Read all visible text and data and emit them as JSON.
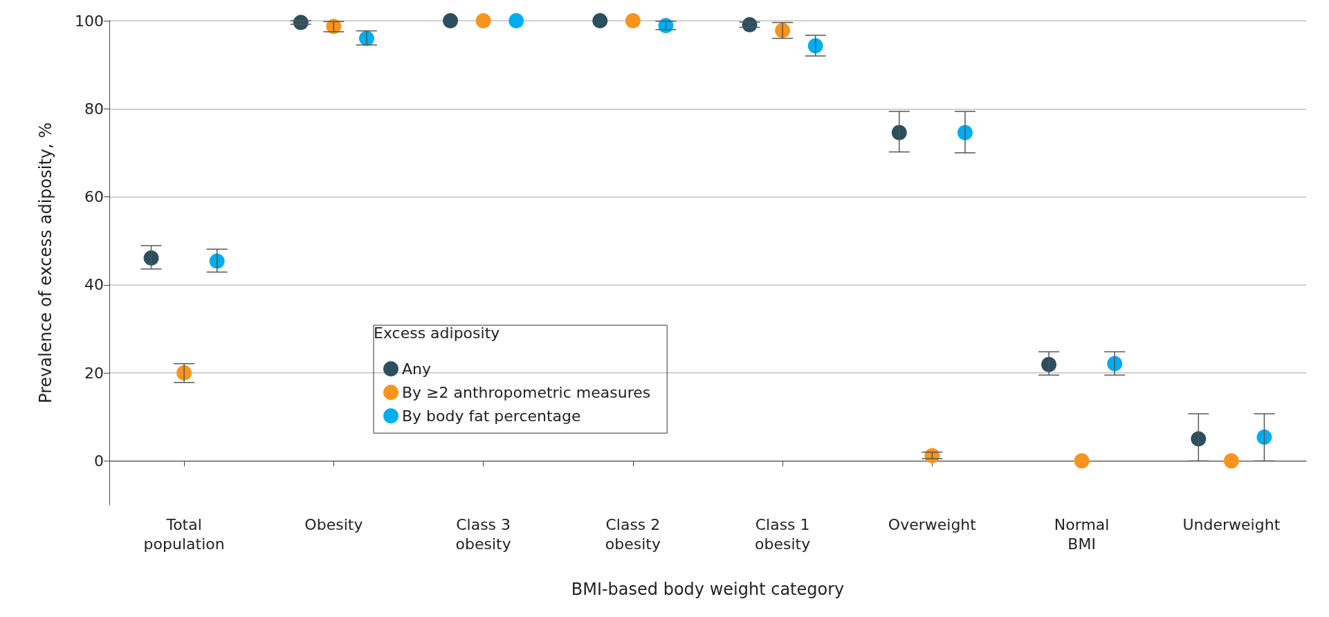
{
  "chart_data": {
    "type": "scatter",
    "xlabel": "BMI-based body weight category",
    "ylabel": "Prevalence of excess adiposity, %",
    "legend_title": "Excess adiposity",
    "categories": [
      "Total\npopulation",
      "Obesity",
      "Class 3\nobesity",
      "Class 2\nobesity",
      "Class 1\nobesity",
      "Overweight",
      "Normal\nBMI",
      "Underweight"
    ],
    "series": [
      {
        "name": "Any",
        "color": "#2b4f5e",
        "values": [
          46.1,
          99.6,
          100,
          100,
          99.1,
          74.6,
          21.9,
          5.0
        ],
        "errors": [
          [
            43.6,
            48.9
          ],
          [
            99.2,
            100
          ],
          null,
          null,
          [
            98.5,
            99.7
          ],
          [
            70.2,
            79.4
          ],
          [
            19.5,
            24.8
          ],
          [
            0,
            10.7
          ]
        ]
      },
      {
        "name": "By ≥2 anthropometric measures",
        "color": "#f7941d",
        "values": [
          20.0,
          98.7,
          100,
          100,
          97.8,
          1.2,
          0,
          0
        ],
        "errors": [
          [
            17.8,
            22.1
          ],
          [
            97.5,
            99.8
          ],
          null,
          null,
          [
            96.0,
            99.6
          ],
          [
            0.5,
            2.0
          ],
          null,
          null
        ]
      },
      {
        "name": "By body fat percentage",
        "color": "#00aeef",
        "values": [
          45.4,
          96.0,
          100,
          98.9,
          94.3,
          74.6,
          22.1,
          5.4
        ],
        "errors": [
          [
            42.9,
            48.1
          ],
          [
            94.5,
            97.7
          ],
          null,
          [
            98.0,
            99.9
          ],
          [
            92.0,
            96.7
          ],
          [
            70.0,
            79.4
          ],
          [
            19.5,
            24.8
          ],
          [
            0,
            10.7
          ]
        ]
      }
    ],
    "ylim": [
      -10,
      100
    ],
    "yticks": [
      0,
      20,
      40,
      60,
      80,
      100
    ],
    "grid": "y",
    "legend": "center",
    "marker": "circle"
  }
}
